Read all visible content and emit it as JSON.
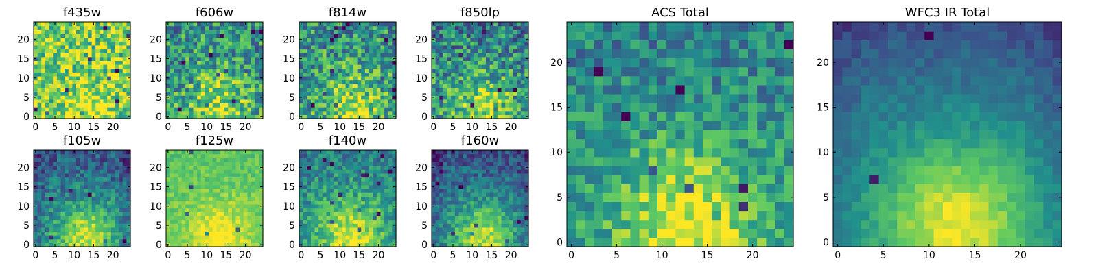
{
  "figure": {
    "background": "#ffffff",
    "colormap": "viridis",
    "colormap_stops": [
      "#440154",
      "#3b528b",
      "#21918c",
      "#5ec962",
      "#fde725"
    ]
  },
  "chart_data": [
    {
      "type": "heatmap",
      "title": "f435w",
      "grid": [
        25,
        25
      ],
      "x_ticks": [
        "0",
        "5",
        "10",
        "15",
        "20"
      ],
      "y_ticks": [
        "0",
        "5",
        "10",
        "15",
        "20"
      ],
      "xlim": [
        -0.5,
        24.5
      ],
      "ylim": [
        -0.5,
        24.5
      ],
      "grid_lines": false,
      "style": {
        "bias": 0.32,
        "noise": 0.3,
        "center": 0.15,
        "top": 0.0,
        "edge": 0.0
      }
    },
    {
      "type": "heatmap",
      "title": "f606w",
      "grid": [
        25,
        25
      ],
      "x_ticks": [
        "0",
        "5",
        "10",
        "15",
        "20"
      ],
      "y_ticks": [
        "0",
        "5",
        "10",
        "15",
        "20"
      ],
      "xlim": [
        -0.5,
        24.5
      ],
      "ylim": [
        -0.5,
        24.5
      ],
      "grid_lines": false,
      "style": {
        "bias": 0.1,
        "noise": 0.3,
        "center": 0.35,
        "top": 0.05,
        "edge": 0.0
      }
    },
    {
      "type": "heatmap",
      "title": "f814w",
      "grid": [
        25,
        25
      ],
      "x_ticks": [
        "0",
        "5",
        "10",
        "15",
        "20"
      ],
      "y_ticks": [
        "0",
        "5",
        "10",
        "15",
        "20"
      ],
      "xlim": [
        -0.5,
        24.5
      ],
      "ylim": [
        -0.5,
        24.5
      ],
      "grid_lines": false,
      "style": {
        "bias": 0.1,
        "noise": 0.3,
        "center": 0.35,
        "top": 0.05,
        "edge": 0.0
      }
    },
    {
      "type": "heatmap",
      "title": "f850lp",
      "grid": [
        25,
        25
      ],
      "x_ticks": [
        "0",
        "5",
        "10",
        "15",
        "20"
      ],
      "y_ticks": [
        "0",
        "5",
        "10",
        "15",
        "20"
      ],
      "xlim": [
        -0.5,
        24.5
      ],
      "ylim": [
        -0.5,
        24.5
      ],
      "grid_lines": false,
      "style": {
        "bias": 0.08,
        "noise": 0.3,
        "center": 0.35,
        "top": 0.1,
        "edge": 0.0
      }
    },
    {
      "type": "heatmap",
      "title": "f105w",
      "grid": [
        25,
        25
      ],
      "x_ticks": [
        "0",
        "5",
        "10",
        "15",
        "20"
      ],
      "y_ticks": [
        "0",
        "5",
        "10",
        "15",
        "20"
      ],
      "xlim": [
        -0.5,
        24.5
      ],
      "ylim": [
        -0.5,
        24.5
      ],
      "grid_lines": false,
      "style": {
        "bias": 0.02,
        "noise": 0.18,
        "center": 0.45,
        "top": 0.2,
        "edge": 0.1
      }
    },
    {
      "type": "heatmap",
      "title": "f125w",
      "grid": [
        25,
        25
      ],
      "x_ticks": [
        "0",
        "5",
        "10",
        "15",
        "20"
      ],
      "y_ticks": [
        "0",
        "5",
        "10",
        "15",
        "20"
      ],
      "xlim": [
        -0.5,
        24.5
      ],
      "ylim": [
        -0.5,
        24.5
      ],
      "grid_lines": false,
      "style": {
        "bias": 0.32,
        "noise": 0.1,
        "center": 0.25,
        "top": 0.05,
        "edge": 0.0
      }
    },
    {
      "type": "heatmap",
      "title": "f140w",
      "grid": [
        25,
        25
      ],
      "x_ticks": [
        "0",
        "5",
        "10",
        "15",
        "20"
      ],
      "y_ticks": [
        "0",
        "5",
        "10",
        "15",
        "20"
      ],
      "xlim": [
        -0.5,
        24.5
      ],
      "ylim": [
        -0.5,
        24.5
      ],
      "grid_lines": false,
      "style": {
        "bias": 0.12,
        "noise": 0.18,
        "center": 0.4,
        "top": 0.15,
        "edge": 0.05
      }
    },
    {
      "type": "heatmap",
      "title": "f160w",
      "grid": [
        25,
        25
      ],
      "x_ticks": [
        "0",
        "5",
        "10",
        "15",
        "20"
      ],
      "y_ticks": [
        "0",
        "5",
        "10",
        "15",
        "20"
      ],
      "xlim": [
        -0.5,
        24.5
      ],
      "ylim": [
        -0.5,
        24.5
      ],
      "grid_lines": false,
      "style": {
        "bias": 0.0,
        "noise": 0.16,
        "center": 0.45,
        "top": 0.2,
        "edge": 0.12
      }
    },
    {
      "type": "heatmap",
      "title": "ACS Total",
      "grid": [
        25,
        25
      ],
      "x_ticks": [
        "0",
        "5",
        "10",
        "15",
        "20"
      ],
      "y_ticks": [
        "0",
        "5",
        "10",
        "15",
        "20"
      ],
      "xlim": [
        -0.5,
        24.5
      ],
      "ylim": [
        -0.5,
        24.5
      ],
      "grid_lines": false,
      "style": {
        "bias": 0.08,
        "noise": 0.2,
        "center": 0.45,
        "top": 0.1,
        "edge": 0.0
      }
    },
    {
      "type": "heatmap",
      "title": "WFC3 IR Total",
      "grid": [
        25,
        25
      ],
      "x_ticks": [
        "0",
        "5",
        "10",
        "15",
        "20"
      ],
      "y_ticks": [
        "0",
        "5",
        "10",
        "15",
        "20"
      ],
      "xlim": [
        -0.5,
        24.5
      ],
      "ylim": [
        -0.5,
        24.5
      ],
      "grid_lines": false,
      "style": {
        "bias": 0.05,
        "noise": 0.07,
        "center": 0.48,
        "top": 0.25,
        "edge": 0.08
      }
    }
  ]
}
